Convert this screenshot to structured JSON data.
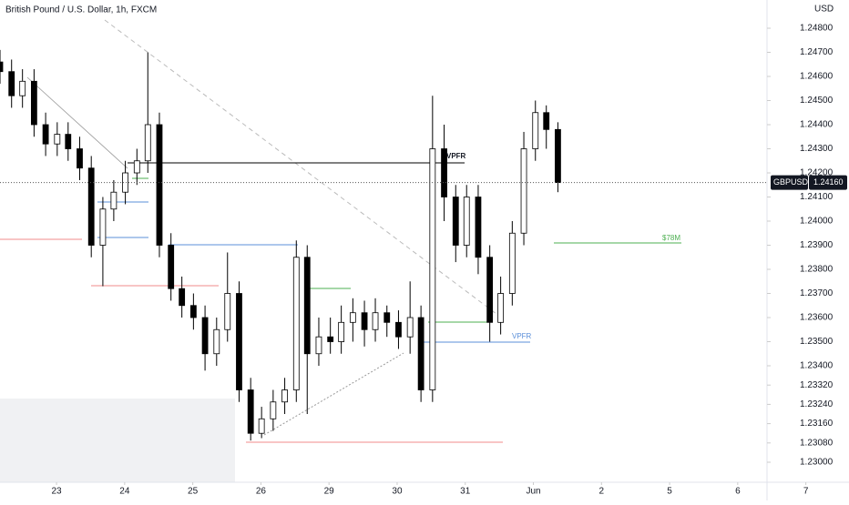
{
  "chart_data": {
    "type": "candlestick",
    "title": "British Pound / U.S. Dollar, 1h, FXCM",
    "currency": "USD",
    "symbol": "GBPUSD",
    "last_price": {
      "value": 1.2416,
      "label": "1.24160"
    },
    "annotations": [
      "VPFR",
      "VPFR",
      "$78M"
    ],
    "up_color": "#ffffff",
    "down_color": "#000000",
    "xlim": [
      -0.83,
      10.43
    ],
    "ylim": [
      1.22917,
      1.24917
    ],
    "xticks": [
      {
        "value": 0,
        "label": "23"
      },
      {
        "value": 1,
        "label": "24"
      },
      {
        "value": 2,
        "label": "25"
      },
      {
        "value": 3,
        "label": "26"
      },
      {
        "value": 4,
        "label": "29"
      },
      {
        "value": 5,
        "label": "30"
      },
      {
        "value": 6,
        "label": "31"
      },
      {
        "value": 7,
        "label": "Jun"
      },
      {
        "value": 8,
        "label": "2"
      },
      {
        "value": 9,
        "label": "5"
      },
      {
        "value": 10,
        "label": "6"
      },
      {
        "value": 11,
        "label": "7"
      }
    ],
    "yticks": [
      {
        "value": 1.248,
        "label": "1.24800"
      },
      {
        "value": 1.247,
        "label": "1.24700"
      },
      {
        "value": 1.246,
        "label": "1.24600"
      },
      {
        "value": 1.245,
        "label": "1.24500"
      },
      {
        "value": 1.244,
        "label": "1.24400"
      },
      {
        "value": 1.243,
        "label": "1.24300"
      },
      {
        "value": 1.242,
        "label": "1.24200"
      },
      {
        "value": 1.241,
        "label": "1.24100"
      },
      {
        "value": 1.24,
        "label": "1.24000"
      },
      {
        "value": 1.239,
        "label": "1.23900"
      },
      {
        "value": 1.238,
        "label": "1.23800"
      },
      {
        "value": 1.237,
        "label": "1.23700"
      },
      {
        "value": 1.236,
        "label": "1.23600"
      },
      {
        "value": 1.235,
        "label": "1.23500"
      },
      {
        "value": 1.234,
        "label": "1.23400"
      },
      {
        "value": 1.2332,
        "label": "1.23320"
      },
      {
        "value": 1.2324,
        "label": "1.23240"
      },
      {
        "value": 1.2316,
        "label": "1.23160"
      },
      {
        "value": 1.2308,
        "label": "1.23080"
      },
      {
        "value": 1.23,
        "label": "1.23000"
      }
    ],
    "x": [
      -0.83,
      -0.66,
      -0.5,
      -0.33,
      -0.16,
      0.01,
      0.17,
      0.34,
      0.51,
      0.68,
      0.84,
      1.01,
      1.18,
      1.34,
      1.51,
      1.68,
      1.84,
      2.01,
      2.18,
      2.35,
      2.51,
      2.68,
      2.85,
      3.01,
      3.18,
      3.35,
      3.52,
      3.68,
      3.85,
      4.02,
      4.18,
      4.35,
      4.52,
      4.68,
      4.85,
      5.02,
      5.19,
      5.35,
      5.52,
      5.69,
      5.86,
      6.02,
      6.19,
      6.36,
      6.52,
      6.69,
      6.86,
      7.03,
      7.19,
      7.36
    ],
    "open": [
      1.2466,
      1.2462,
      1.2452,
      1.2458,
      1.244,
      1.2432,
      1.2436,
      1.243,
      1.2422,
      1.239,
      1.2405,
      1.2412,
      1.242,
      1.2425,
      1.244,
      1.239,
      1.2372,
      1.2365,
      1.236,
      1.2345,
      1.2355,
      1.237,
      1.233,
      1.2312,
      1.2318,
      1.2325,
      1.233,
      1.2385,
      1.2345,
      1.2352,
      1.235,
      1.2358,
      1.2362,
      1.2355,
      1.2362,
      1.2358,
      1.2352,
      1.236,
      1.233,
      1.243,
      1.241,
      1.239,
      1.241,
      1.2385,
      1.2358,
      1.237,
      1.2395,
      1.243,
      1.2445,
      1.2438
    ],
    "high": [
      1.2471,
      1.2467,
      1.2463,
      1.2463,
      1.2445,
      1.2441,
      1.2441,
      1.2435,
      1.2427,
      1.241,
      1.2417,
      1.2425,
      1.243,
      1.247,
      1.2445,
      1.2395,
      1.2377,
      1.237,
      1.2365,
      1.236,
      1.2387,
      1.2375,
      1.2335,
      1.2323,
      1.233,
      1.2335,
      1.2392,
      1.239,
      1.236,
      1.236,
      1.2365,
      1.2368,
      1.2367,
      1.2368,
      1.2365,
      1.2363,
      1.2375,
      1.2365,
      1.2452,
      1.244,
      1.2415,
      1.2415,
      1.2415,
      1.239,
      1.2377,
      1.24,
      1.2437,
      1.245,
      1.2448,
      1.2441
    ],
    "low": [
      1.2457,
      1.2447,
      1.2447,
      1.2435,
      1.2427,
      1.2427,
      1.2425,
      1.2417,
      1.2385,
      1.2373,
      1.24,
      1.2407,
      1.2415,
      1.242,
      1.2385,
      1.2367,
      1.236,
      1.2355,
      1.2338,
      1.234,
      1.235,
      1.2325,
      1.2309,
      1.231,
      1.2313,
      1.232,
      1.2325,
      1.232,
      1.234,
      1.2345,
      1.2345,
      1.235,
      1.2348,
      1.235,
      1.2352,
      1.2347,
      1.2345,
      1.2325,
      1.2325,
      1.24,
      1.2383,
      1.2385,
      1.2378,
      1.235,
      1.2353,
      1.2365,
      1.239,
      1.2425,
      1.243,
      1.2412
    ],
    "close": [
      1.2462,
      1.2452,
      1.2458,
      1.244,
      1.2432,
      1.2436,
      1.243,
      1.2422,
      1.239,
      1.2405,
      1.2412,
      1.242,
      1.2425,
      1.244,
      1.239,
      1.2372,
      1.2365,
      1.236,
      1.2345,
      1.2355,
      1.237,
      1.233,
      1.2312,
      1.2318,
      1.2325,
      1.233,
      1.2385,
      1.2345,
      1.2352,
      1.235,
      1.2358,
      1.2362,
      1.2355,
      1.2362,
      1.2358,
      1.2352,
      1.236,
      1.233,
      1.243,
      1.241,
      1.239,
      1.241,
      1.2385,
      1.2358,
      1.237,
      1.2395,
      1.243,
      1.2445,
      1.2438,
      1.2416
    ]
  }
}
